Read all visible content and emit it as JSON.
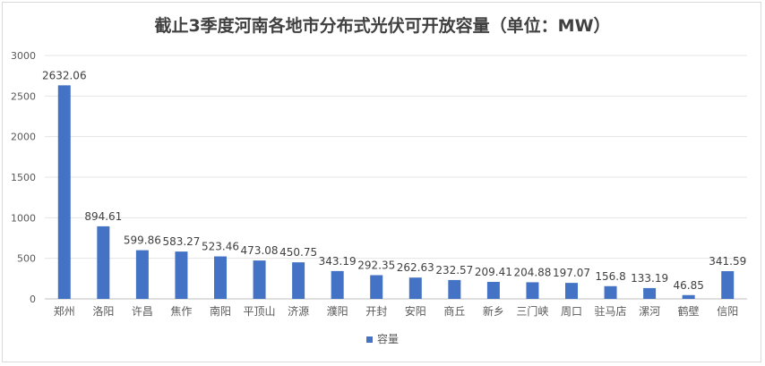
{
  "chart_data": {
    "type": "bar",
    "title": "截止3季度河南各地市分布式光伏可开放容量（单位：MW）",
    "categories": [
      "郑州",
      "洛阳",
      "许昌",
      "焦作",
      "南阳",
      "平顶山",
      "济源",
      "濮阳",
      "开封",
      "安阳",
      "商丘",
      "新乡",
      "三门峡",
      "周口",
      "驻马店",
      "漯河",
      "鹤壁",
      "信阳"
    ],
    "series": [
      {
        "name": "容量",
        "values": [
          2632.06,
          894.61,
          599.86,
          583.27,
          523.46,
          473.08,
          450.75,
          343.19,
          292.35,
          262.63,
          232.57,
          209.41,
          204.88,
          197.07,
          156.8,
          133.19,
          46.85,
          341.59
        ],
        "color": "#4472C4"
      }
    ],
    "value_labels": [
      "2632.06",
      "894.61",
      "599.86",
      "583.27",
      "523.46",
      "473.08",
      "450.75",
      "343.19",
      "292.35",
      "262.63",
      "232.57",
      "209.41",
      "204.88",
      "197.07",
      "156.8",
      "133.19",
      "46.85",
      "341.59"
    ],
    "ylim": [
      0,
      3000
    ],
    "yticks": [
      "0",
      "500",
      "1000",
      "1500",
      "2000",
      "2500",
      "3000"
    ],
    "grid": true,
    "legend": "bottom",
    "xlabel": "",
    "ylabel": ""
  }
}
